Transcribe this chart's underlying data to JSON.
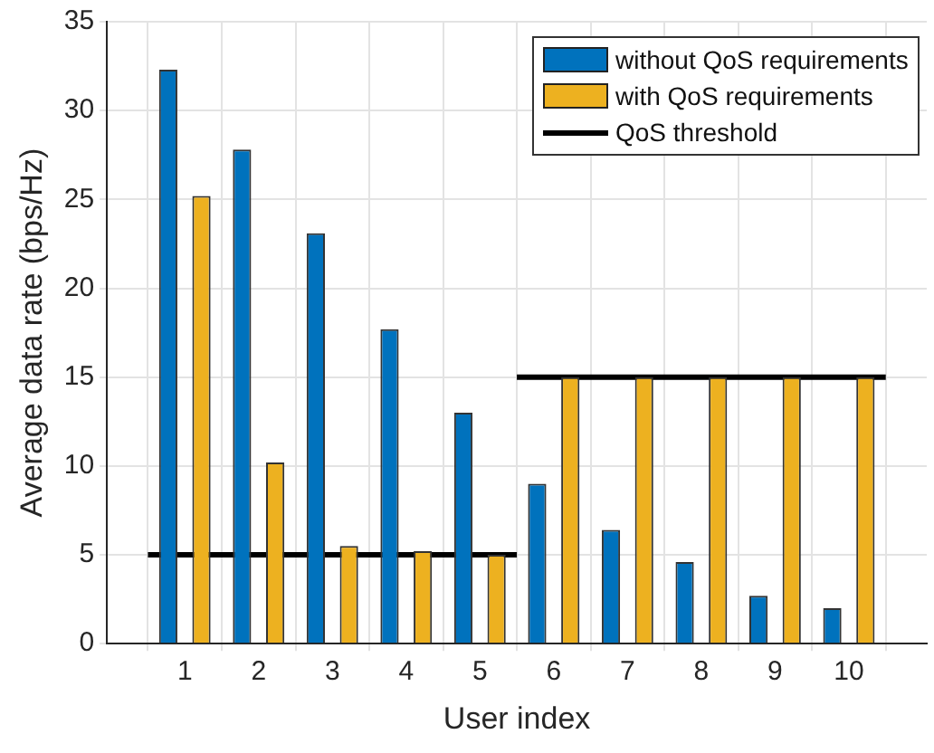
{
  "chart_data": {
    "type": "bar",
    "xlabel": "User index",
    "ylabel": "Average data rate (bps/Hz)",
    "x": [
      1,
      2,
      3,
      4,
      5,
      6,
      7,
      8,
      9,
      10
    ],
    "xlim": [
      0.5,
      10.5
    ],
    "xticks": [
      1,
      2,
      3,
      4,
      5,
      6,
      7,
      8,
      9,
      10
    ],
    "ylim": [
      0,
      35
    ],
    "yticks": [
      0,
      5,
      10,
      15,
      20,
      25,
      30,
      35
    ],
    "grid": true,
    "legend": "top right",
    "series": [
      {
        "name": "without QoS requirements",
        "color": "#0072bd",
        "values": [
          32.3,
          27.8,
          23.1,
          17.7,
          13.0,
          9.0,
          6.4,
          4.6,
          2.7,
          2.0
        ]
      },
      {
        "name": "with QoS requirements",
        "color": "#edb120",
        "values": [
          25.2,
          10.2,
          5.5,
          5.2,
          5.0,
          15,
          15,
          15,
          15,
          15
        ]
      },
      {
        "name": "QoS threshold",
        "type": "line",
        "color": "#000000",
        "x": [
          0.5,
          5.5
        ],
        "values": [
          5,
          5
        ]
      },
      {
        "type": "line",
        "color": "#000000",
        "x": [
          5.5,
          10.5
        ],
        "values": [
          15,
          15
        ]
      }
    ]
  }
}
